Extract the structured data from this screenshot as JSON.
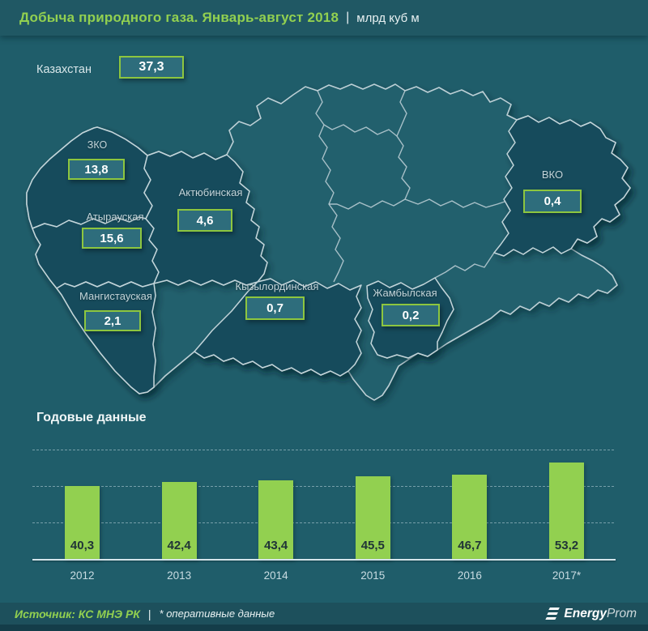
{
  "header": {
    "title": "Добыча природного газа. Январь-август 2018",
    "separator": "|",
    "unit": "млрд куб м"
  },
  "country": {
    "label": "Казахстан",
    "value": "37,3"
  },
  "map_regions": [
    {
      "id": "zko",
      "name": "ЗКО",
      "value": "13,8"
    },
    {
      "id": "atyrau",
      "name": "Атырауская",
      "value": "15,6"
    },
    {
      "id": "aktobe",
      "name": "Актюбинская",
      "value": "4,6"
    },
    {
      "id": "mangystau",
      "name": "Мангистауская",
      "value": "2,1"
    },
    {
      "id": "kyzylorda",
      "name": "Кызылординская",
      "value": "0,7"
    },
    {
      "id": "zhambyl",
      "name": "Жамбылская",
      "value": "0,2"
    },
    {
      "id": "vko",
      "name": "ВКО",
      "value": "0,4"
    }
  ],
  "chart_data": {
    "type": "bar",
    "title": "Годовые данные",
    "categories": [
      "2012",
      "2013",
      "2014",
      "2015",
      "2016",
      "2017*"
    ],
    "values": [
      40.3,
      42.4,
      43.4,
      45.5,
      46.7,
      53.2
    ],
    "value_labels": [
      "40,3",
      "42,4",
      "43,4",
      "45,5",
      "46,7",
      "53,2"
    ],
    "xlabel": "",
    "ylabel": "",
    "ylim": [
      0,
      62
    ],
    "gridlines": [
      20,
      40,
      60
    ],
    "grid": "dashed",
    "legend": "none",
    "bar_color": "#92d050"
  },
  "footer": {
    "source": "Источник: КС МНЭ РК",
    "separator": "|",
    "note": "* оперативные данные",
    "logo_bold": "Energy",
    "logo_light": "Prom"
  },
  "colors": {
    "background": "#1f5d6a",
    "header_band": "#205864",
    "accent_green": "#92d050",
    "box_border_green": "#8dc63f",
    "region_highlight": "#164b5b",
    "map_border": "#bccfd5",
    "white_text": "#e8f1f2"
  }
}
